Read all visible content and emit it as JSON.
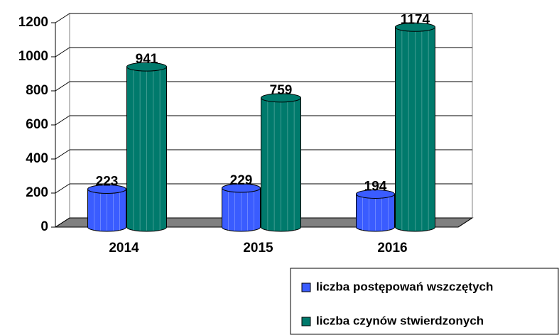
{
  "chart_data": {
    "type": "bar3d",
    "categories": [
      "2014",
      "2015",
      "2016"
    ],
    "series": [
      {
        "name": "liczba postępowań wszczętych",
        "color": "#3a5cff",
        "values": [
          223,
          229,
          194
        ]
      },
      {
        "name": "liczba czynów stwierdzonych",
        "color": "#007a6c",
        "values": [
          941,
          759,
          1174
        ]
      }
    ],
    "ylim": [
      0,
      1200
    ],
    "yticks": [
      0,
      200,
      400,
      600,
      800,
      1000,
      1200
    ],
    "grid": true
  }
}
